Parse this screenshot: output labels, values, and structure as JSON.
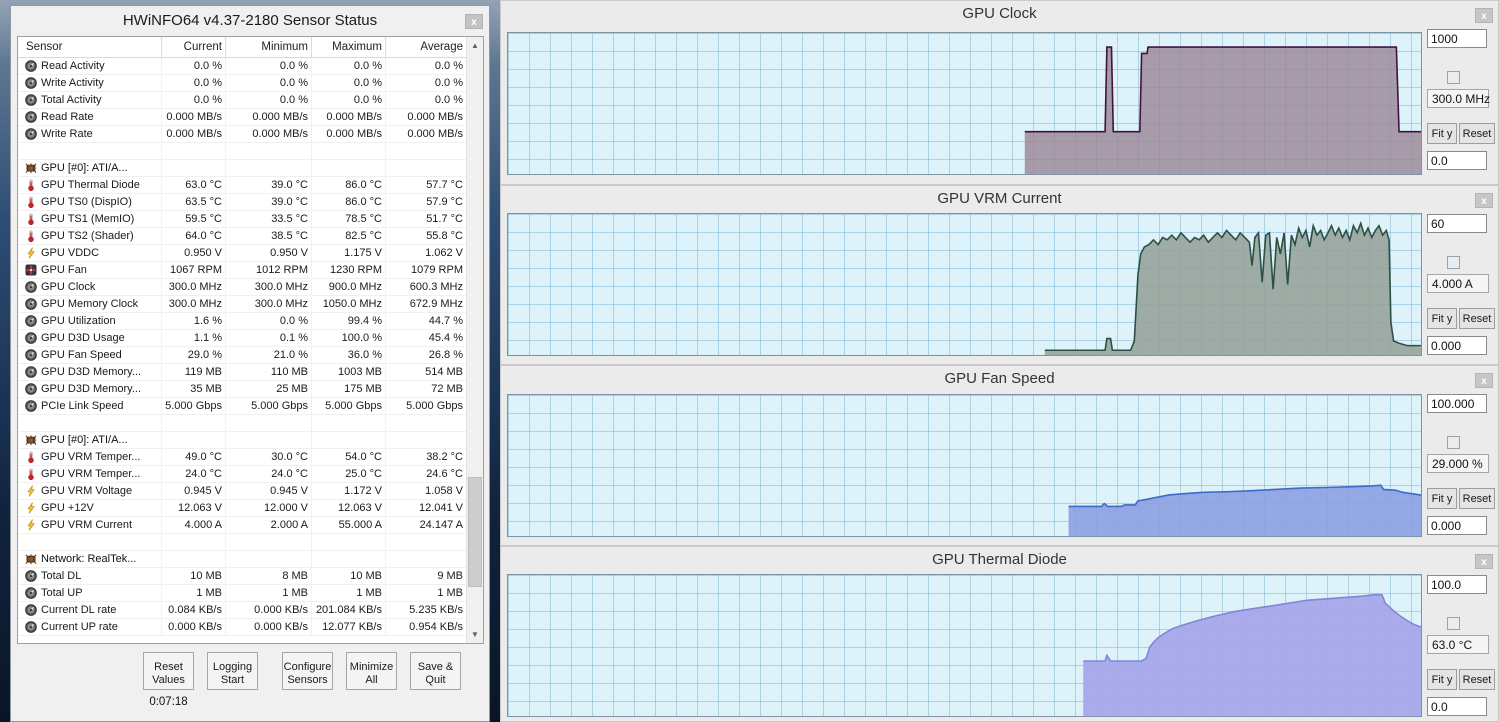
{
  "sensor_window": {
    "title": "HWiNFO64 v4.37-2180 Sensor Status",
    "close_label": "x",
    "columns": [
      "Sensor",
      "Current",
      "Minimum",
      "Maximum",
      "Average"
    ],
    "groups": [
      {
        "header": null,
        "rows": [
          {
            "icon": "gauge",
            "name": "Read Activity",
            "cur": "0.0 %",
            "min": "0.0 %",
            "max": "0.0 %",
            "avg": "0.0 %"
          },
          {
            "icon": "gauge",
            "name": "Write Activity",
            "cur": "0.0 %",
            "min": "0.0 %",
            "max": "0.0 %",
            "avg": "0.0 %"
          },
          {
            "icon": "gauge",
            "name": "Total Activity",
            "cur": "0.0 %",
            "min": "0.0 %",
            "max": "0.0 %",
            "avg": "0.0 %"
          },
          {
            "icon": "gauge",
            "name": "Read Rate",
            "cur": "0.000 MB/s",
            "min": "0.000 MB/s",
            "max": "0.000 MB/s",
            "avg": "0.000 MB/s"
          },
          {
            "icon": "gauge",
            "name": "Write Rate",
            "cur": "0.000 MB/s",
            "min": "0.000 MB/s",
            "max": "0.000 MB/s",
            "avg": "0.000 MB/s"
          }
        ]
      },
      {
        "header": {
          "icon": "chip",
          "name": "GPU [#0]: ATI/A..."
        },
        "rows": [
          {
            "icon": "thermo",
            "name": "GPU Thermal Diode",
            "cur": "63.0 °C",
            "min": "39.0 °C",
            "max": "86.0 °C",
            "avg": "57.7 °C"
          },
          {
            "icon": "thermo",
            "name": "GPU TS0 (DispIO)",
            "cur": "63.5 °C",
            "min": "39.0 °C",
            "max": "86.0 °C",
            "avg": "57.9 °C"
          },
          {
            "icon": "thermo",
            "name": "GPU TS1 (MemIO)",
            "cur": "59.5 °C",
            "min": "33.5 °C",
            "max": "78.5 °C",
            "avg": "51.7 °C"
          },
          {
            "icon": "thermo",
            "name": "GPU TS2 (Shader)",
            "cur": "64.0 °C",
            "min": "38.5 °C",
            "max": "82.5 °C",
            "avg": "55.8 °C"
          },
          {
            "icon": "bolt",
            "name": "GPU VDDC",
            "cur": "0.950 V",
            "min": "0.950 V",
            "max": "1.175 V",
            "avg": "1.062 V"
          },
          {
            "icon": "fan",
            "name": "GPU Fan",
            "cur": "1067 RPM",
            "min": "1012 RPM",
            "max": "1230 RPM",
            "avg": "1079 RPM"
          },
          {
            "icon": "gauge",
            "name": "GPU Clock",
            "cur": "300.0 MHz",
            "min": "300.0 MHz",
            "max": "900.0 MHz",
            "avg": "600.3 MHz"
          },
          {
            "icon": "gauge",
            "name": "GPU Memory Clock",
            "cur": "300.0 MHz",
            "min": "300.0 MHz",
            "max": "1050.0 MHz",
            "avg": "672.9 MHz"
          },
          {
            "icon": "gauge",
            "name": "GPU Utilization",
            "cur": "1.6 %",
            "min": "0.0 %",
            "max": "99.4 %",
            "avg": "44.7 %"
          },
          {
            "icon": "gauge",
            "name": "GPU D3D Usage",
            "cur": "1.1 %",
            "min": "0.1 %",
            "max": "100.0 %",
            "avg": "45.4 %"
          },
          {
            "icon": "gauge",
            "name": "GPU Fan Speed",
            "cur": "29.0 %",
            "min": "21.0 %",
            "max": "36.0 %",
            "avg": "26.8 %"
          },
          {
            "icon": "gauge",
            "name": "GPU D3D Memory...",
            "cur": "119 MB",
            "min": "110 MB",
            "max": "1003 MB",
            "avg": "514 MB"
          },
          {
            "icon": "gauge",
            "name": "GPU D3D Memory...",
            "cur": "35 MB",
            "min": "25 MB",
            "max": "175 MB",
            "avg": "72 MB"
          },
          {
            "icon": "gauge",
            "name": "PCIe Link Speed",
            "cur": "5.000 Gbps",
            "min": "5.000 Gbps",
            "max": "5.000 Gbps",
            "avg": "5.000 Gbps"
          }
        ]
      },
      {
        "header": {
          "icon": "chip",
          "name": "GPU [#0]: ATI/A..."
        },
        "rows": [
          {
            "icon": "thermo",
            "name": "GPU VRM Temper...",
            "cur": "49.0 °C",
            "min": "30.0 °C",
            "max": "54.0 °C",
            "avg": "38.2 °C"
          },
          {
            "icon": "thermo",
            "name": "GPU VRM Temper...",
            "cur": "24.0 °C",
            "min": "24.0 °C",
            "max": "25.0 °C",
            "avg": "24.6 °C"
          },
          {
            "icon": "bolt",
            "name": "GPU VRM Voltage",
            "cur": "0.945 V",
            "min": "0.945 V",
            "max": "1.172 V",
            "avg": "1.058 V"
          },
          {
            "icon": "bolt",
            "name": "GPU +12V",
            "cur": "12.063 V",
            "min": "12.000 V",
            "max": "12.063 V",
            "avg": "12.041 V"
          },
          {
            "icon": "bolt",
            "name": "GPU VRM Current",
            "cur": "4.000 A",
            "min": "2.000 A",
            "max": "55.000 A",
            "avg": "24.147 A"
          }
        ]
      },
      {
        "header": {
          "icon": "chip",
          "name": "Network: RealTek..."
        },
        "rows": [
          {
            "icon": "gauge",
            "name": "Total DL",
            "cur": "10 MB",
            "min": "8 MB",
            "max": "10 MB",
            "avg": "9 MB"
          },
          {
            "icon": "gauge",
            "name": "Total UP",
            "cur": "1 MB",
            "min": "1 MB",
            "max": "1 MB",
            "avg": "1 MB"
          },
          {
            "icon": "gauge",
            "name": "Current DL rate",
            "cur": "0.084 KB/s",
            "min": "0.000 KB/s",
            "max": "201.084 KB/s",
            "avg": "5.235 KB/s"
          },
          {
            "icon": "gauge",
            "name": "Current UP rate",
            "cur": "0.000 KB/s",
            "min": "0.000 KB/s",
            "max": "12.077 KB/s",
            "avg": "0.954 KB/s"
          }
        ]
      }
    ],
    "buttons": [
      "Reset Values",
      "Logging Start",
      "Configure Sensors",
      "Minimize All",
      "Save & Quit"
    ],
    "timer": "0:07:18"
  },
  "panels": [
    {
      "title": "GPU Clock",
      "close_label": "x",
      "max": "1000",
      "current": "300.0 MHz",
      "min": "0.0",
      "fit_label": "Fit y",
      "reset_label": "Reset"
    },
    {
      "title": "GPU VRM Current",
      "close_label": "x",
      "max": "60",
      "current": "4.000 A",
      "min": "0.000",
      "fit_label": "Fit y",
      "reset_label": "Reset"
    },
    {
      "title": "GPU Fan Speed",
      "close_label": "x",
      "max": "100.000",
      "current": "29.000 %",
      "min": "0.000",
      "fit_label": "Fit y",
      "reset_label": "Reset"
    },
    {
      "title": "GPU Thermal Diode",
      "close_label": "x",
      "max": "100.0",
      "current": "63.0 °C",
      "min": "0.0",
      "fit_label": "Fit y",
      "reset_label": "Reset"
    }
  ],
  "chart_data": [
    {
      "type": "area",
      "title": "GPU Clock",
      "ylabel": "MHz",
      "ylim": [
        0,
        1000
      ],
      "grid": true,
      "x_axis": "history (fraction of visible window, no tick labels shown)",
      "fill": "#9b8495",
      "fill_opacity": 0.8,
      "stroke": "#40123e",
      "points": [
        [
          0.566,
          300
        ],
        [
          0.654,
          300
        ],
        [
          0.656,
          900
        ],
        [
          0.661,
          900
        ],
        [
          0.663,
          300
        ],
        [
          0.692,
          300
        ],
        [
          0.694,
          855
        ],
        [
          0.7,
          855
        ],
        [
          0.701,
          900
        ],
        [
          0.973,
          900
        ],
        [
          0.976,
          300
        ],
        [
          1,
          300
        ]
      ]
    },
    {
      "type": "area",
      "title": "GPU VRM Current",
      "ylabel": "A",
      "ylim": [
        0,
        60
      ],
      "grid": true,
      "x_axis": "history (fraction of visible window, no tick labels shown)",
      "fill": "#93a096",
      "fill_opacity": 0.85,
      "stroke": "#2d4f45",
      "points": [
        [
          0.588,
          2
        ],
        [
          0.62,
          2
        ],
        [
          0.645,
          2
        ],
        [
          0.654,
          2
        ],
        [
          0.656,
          7
        ],
        [
          0.66,
          7
        ],
        [
          0.662,
          2
        ],
        [
          0.682,
          2
        ],
        [
          0.686,
          6
        ],
        [
          0.69,
          34
        ],
        [
          0.693,
          43
        ],
        [
          0.697,
          46
        ],
        [
          0.702,
          47
        ],
        [
          0.707,
          49
        ],
        [
          0.712,
          47
        ],
        [
          0.717,
          50
        ],
        [
          0.722,
          49
        ],
        [
          0.727,
          51
        ],
        [
          0.732,
          49
        ],
        [
          0.737,
          52
        ],
        [
          0.742,
          50
        ],
        [
          0.747,
          48
        ],
        [
          0.752,
          50
        ],
        [
          0.757,
          49
        ],
        [
          0.762,
          51
        ],
        [
          0.767,
          48
        ],
        [
          0.772,
          50
        ],
        [
          0.777,
          52
        ],
        [
          0.782,
          50
        ],
        [
          0.787,
          53
        ],
        [
          0.792,
          51
        ],
        [
          0.797,
          49
        ],
        [
          0.802,
          52
        ],
        [
          0.807,
          50
        ],
        [
          0.812,
          48
        ],
        [
          0.815,
          38
        ],
        [
          0.818,
          50
        ],
        [
          0.822,
          52
        ],
        [
          0.826,
          31
        ],
        [
          0.83,
          51
        ],
        [
          0.834,
          52
        ],
        [
          0.838,
          28
        ],
        [
          0.842,
          50
        ],
        [
          0.846,
          43
        ],
        [
          0.85,
          52
        ],
        [
          0.854,
          30
        ],
        [
          0.858,
          51
        ],
        [
          0.862,
          47
        ],
        [
          0.866,
          54
        ],
        [
          0.87,
          50
        ],
        [
          0.874,
          53
        ],
        [
          0.878,
          46
        ],
        [
          0.882,
          55
        ],
        [
          0.886,
          51
        ],
        [
          0.89,
          53
        ],
        [
          0.894,
          49
        ],
        [
          0.898,
          52
        ],
        [
          0.902,
          55
        ],
        [
          0.906,
          51
        ],
        [
          0.91,
          54
        ],
        [
          0.914,
          50
        ],
        [
          0.918,
          53
        ],
        [
          0.922,
          49
        ],
        [
          0.926,
          55
        ],
        [
          0.93,
          52
        ],
        [
          0.934,
          56
        ],
        [
          0.938,
          51
        ],
        [
          0.942,
          54
        ],
        [
          0.946,
          50
        ],
        [
          0.95,
          53
        ],
        [
          0.954,
          55
        ],
        [
          0.958,
          51
        ],
        [
          0.962,
          53
        ],
        [
          0.965,
          49
        ],
        [
          0.967,
          14
        ],
        [
          0.97,
          6
        ],
        [
          0.976,
          5
        ],
        [
          0.985,
          4
        ],
        [
          1,
          4
        ]
      ]
    },
    {
      "type": "area",
      "title": "GPU Fan Speed",
      "ylabel": "%",
      "ylim": [
        0,
        100
      ],
      "grid": true,
      "x_axis": "history (fraction of visible window, no tick labels shown)",
      "fill": "#8ba0e2",
      "fill_opacity": 0.9,
      "stroke": "#3b6cc9",
      "points": [
        [
          0.614,
          21
        ],
        [
          0.65,
          21
        ],
        [
          0.653,
          23
        ],
        [
          0.657,
          21
        ],
        [
          0.672,
          21
        ],
        [
          0.675,
          22
        ],
        [
          0.687,
          22
        ],
        [
          0.69,
          25
        ],
        [
          0.7,
          26
        ],
        [
          0.707,
          27
        ],
        [
          0.715,
          28
        ],
        [
          0.723,
          29
        ],
        [
          0.74,
          30
        ],
        [
          0.762,
          31
        ],
        [
          0.79,
          31.5
        ],
        [
          0.812,
          32
        ],
        [
          0.84,
          33
        ],
        [
          0.868,
          34
        ],
        [
          0.9,
          34.5
        ],
        [
          0.925,
          35
        ],
        [
          0.947,
          35.5
        ],
        [
          0.956,
          36
        ],
        [
          0.959,
          33
        ],
        [
          0.972,
          32.5
        ],
        [
          0.98,
          31
        ],
        [
          1,
          29
        ]
      ]
    },
    {
      "type": "area",
      "title": "GPU Thermal Diode",
      "ylabel": "°C",
      "ylim": [
        0,
        100
      ],
      "grid": true,
      "x_axis": "history (fraction of visible window, no tick labels shown)",
      "fill": "#a5a5e8",
      "fill_opacity": 0.92,
      "stroke": "#8484d8",
      "points": [
        [
          0.63,
          39
        ],
        [
          0.654,
          39
        ],
        [
          0.656,
          43
        ],
        [
          0.66,
          39
        ],
        [
          0.694,
          39
        ],
        [
          0.699,
          41
        ],
        [
          0.703,
          49
        ],
        [
          0.708,
          53
        ],
        [
          0.713,
          56
        ],
        [
          0.72,
          59
        ],
        [
          0.728,
          62
        ],
        [
          0.737,
          64
        ],
        [
          0.747,
          66
        ],
        [
          0.757,
          68
        ],
        [
          0.775,
          71
        ],
        [
          0.795,
          74
        ],
        [
          0.815,
          76
        ],
        [
          0.835,
          78
        ],
        [
          0.855,
          80
        ],
        [
          0.875,
          82
        ],
        [
          0.895,
          83
        ],
        [
          0.915,
          84
        ],
        [
          0.935,
          85
        ],
        [
          0.95,
          86
        ],
        [
          0.957,
          86
        ],
        [
          0.961,
          80
        ],
        [
          0.966,
          77
        ],
        [
          0.971,
          74
        ],
        [
          0.977,
          71
        ],
        [
          0.984,
          68
        ],
        [
          0.992,
          65
        ],
        [
          1,
          63
        ]
      ]
    }
  ]
}
